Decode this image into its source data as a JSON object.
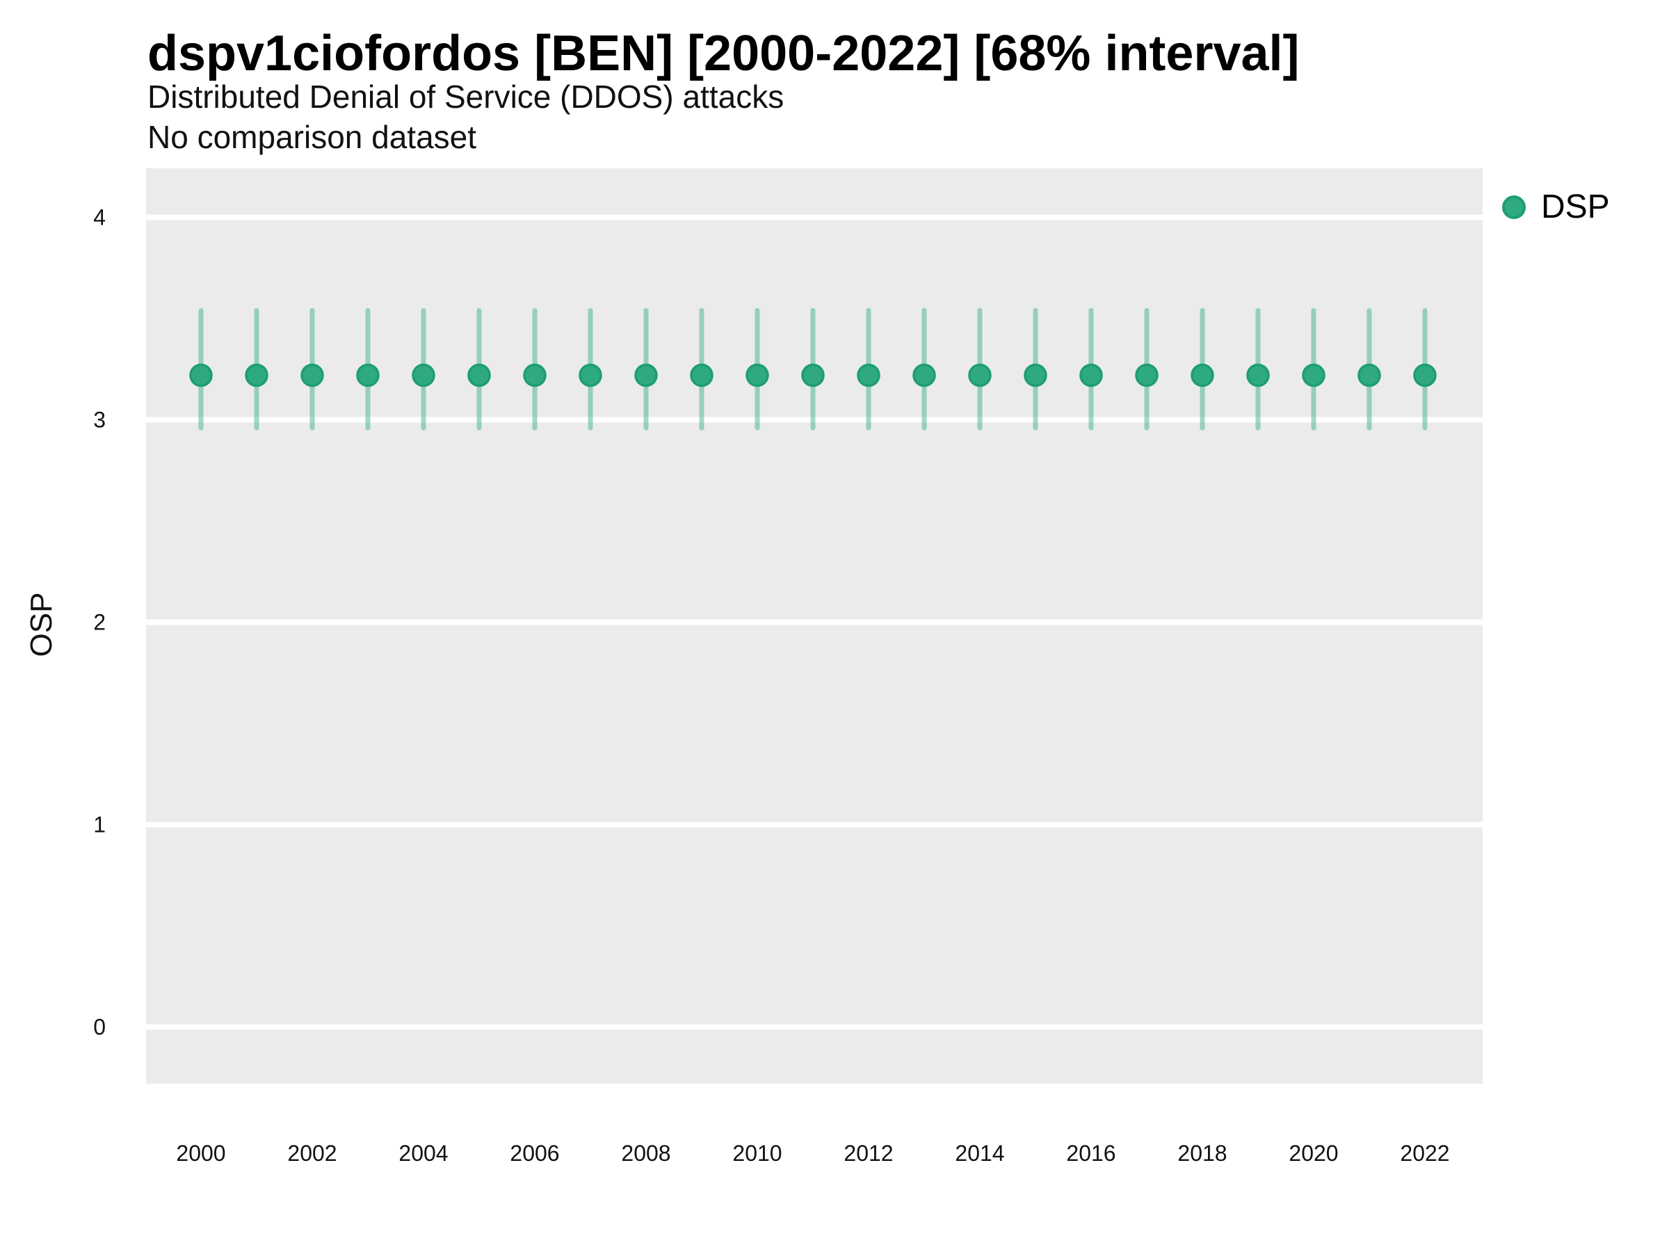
{
  "header": {
    "title": "dspv1ciofordos [BEN] [2000-2022] [68% interval]",
    "subtitle": "Distributed Denial of Service (DDOS) attacks",
    "note": "No comparison dataset"
  },
  "chart_data": {
    "type": "scatter",
    "subtype": "pointrange (dot with 68% interval error bars)",
    "title": "dspv1ciofordos [BEN] [2000-2022] [68% interval]",
    "subtitle": "Distributed Denial of Service (DDOS) attacks",
    "note": "No comparison dataset",
    "xlabel": "",
    "ylabel": "OSP",
    "x": [
      2000,
      2001,
      2002,
      2003,
      2004,
      2005,
      2006,
      2007,
      2008,
      2009,
      2010,
      2011,
      2012,
      2013,
      2014,
      2015,
      2016,
      2017,
      2018,
      2019,
      2020,
      2021,
      2022
    ],
    "series": [
      {
        "name": "DSP",
        "mid": [
          3.22,
          3.22,
          3.22,
          3.22,
          3.22,
          3.22,
          3.22,
          3.22,
          3.22,
          3.22,
          3.22,
          3.22,
          3.22,
          3.22,
          3.22,
          3.22,
          3.22,
          3.22,
          3.22,
          3.22,
          3.22,
          3.22,
          3.22
        ],
        "lo": [
          2.96,
          2.96,
          2.96,
          2.96,
          2.96,
          2.96,
          2.96,
          2.96,
          2.96,
          2.96,
          2.96,
          2.96,
          2.96,
          2.96,
          2.96,
          2.96,
          2.96,
          2.96,
          2.96,
          2.96,
          2.96,
          2.96,
          2.96
        ],
        "hi": [
          3.54,
          3.54,
          3.54,
          3.54,
          3.54,
          3.54,
          3.54,
          3.54,
          3.54,
          3.54,
          3.54,
          3.54,
          3.54,
          3.54,
          3.54,
          3.54,
          3.54,
          3.54,
          3.54,
          3.54,
          3.54,
          3.54,
          3.54
        ]
      }
    ],
    "interval_level": "68%",
    "ylim": [
      -0.28,
      4.25
    ],
    "yticks": [
      0,
      1,
      2,
      3,
      4
    ],
    "xticks": [
      2000,
      2002,
      2004,
      2006,
      2008,
      2010,
      2012,
      2014,
      2016,
      2018,
      2020,
      2022
    ],
    "grid": "major horizontal white gridlines on gray panel",
    "legend_position": "right-top",
    "colors": {
      "point_fill": "#2FAA80",
      "point_border": "#1E9E70",
      "interval_bar": "rgba(47,170,128,0.45)",
      "panel_background": "#EBEBEB",
      "gridline": "#FFFFFF",
      "text": "#111111"
    }
  },
  "legend": {
    "items": [
      {
        "label": "DSP",
        "color": "#2FAA80"
      }
    ]
  }
}
